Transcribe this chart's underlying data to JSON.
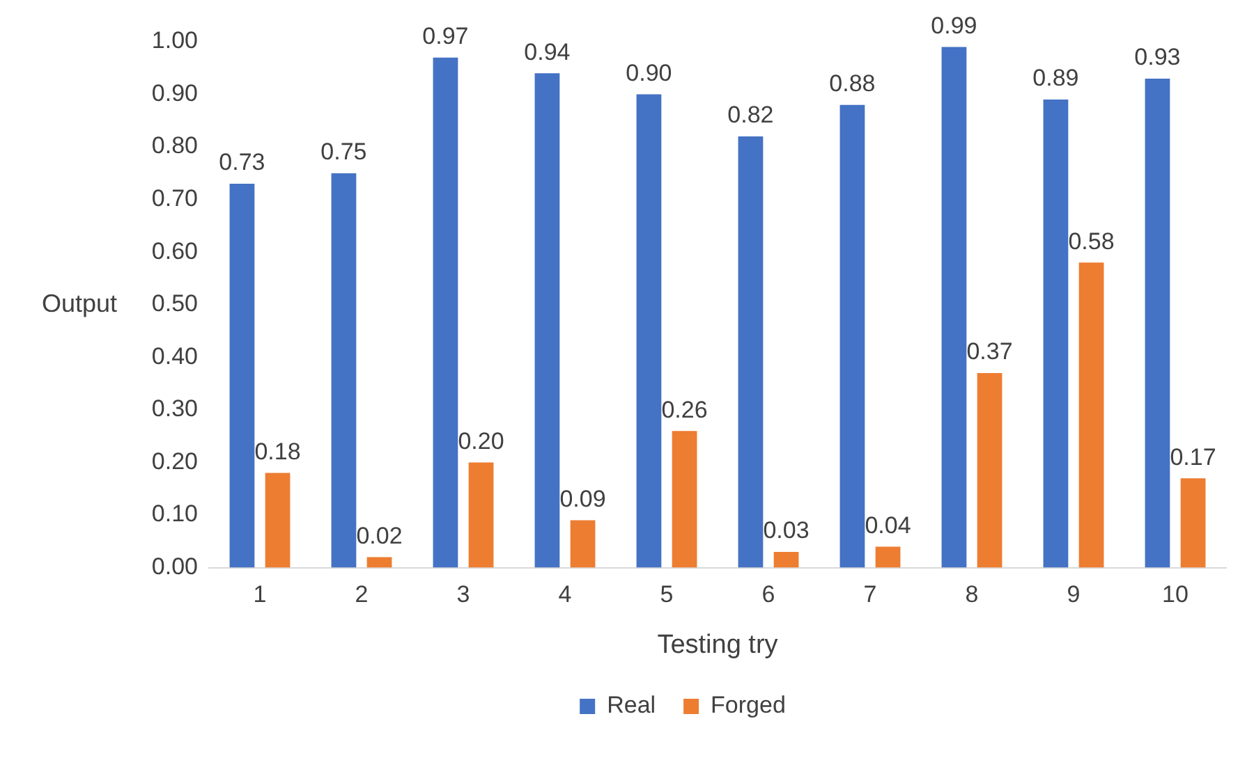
{
  "chart_data": {
    "type": "bar",
    "xlabel": "Testing try",
    "ylabel": "Output",
    "categories": [
      "1",
      "2",
      "3",
      "4",
      "5",
      "6",
      "7",
      "8",
      "9",
      "10"
    ],
    "series": [
      {
        "name": "Real",
        "color": "#4472c4",
        "values": [
          0.73,
          0.75,
          0.97,
          0.94,
          0.9,
          0.82,
          0.88,
          0.99,
          0.89,
          0.93
        ],
        "value_labels": [
          "0.73",
          "0.75",
          "0.97",
          "0.94",
          "0.90",
          "0.82",
          "0.88",
          "0.99",
          "0.89",
          "0.93"
        ]
      },
      {
        "name": "Forged",
        "color": "#ed7d31",
        "values": [
          0.18,
          0.02,
          0.2,
          0.09,
          0.26,
          0.03,
          0.04,
          0.37,
          0.58,
          0.17
        ],
        "value_labels": [
          "0.18",
          "0.02",
          "0.20",
          "0.09",
          "0.26",
          "0.03",
          "0.04",
          "0.37",
          "0.58",
          "0.17"
        ]
      }
    ],
    "ylim": [
      0,
      1
    ],
    "yticks": [
      {
        "value": 0,
        "label": "0.00"
      },
      {
        "value": 0.1,
        "label": "0.10"
      },
      {
        "value": 0.2,
        "label": "0.20"
      },
      {
        "value": 0.3,
        "label": "0.30"
      },
      {
        "value": 0.4,
        "label": "0.40"
      },
      {
        "value": 0.5,
        "label": "0.50"
      },
      {
        "value": 0.6,
        "label": "0.60"
      },
      {
        "value": 0.7,
        "label": "0.70"
      },
      {
        "value": 0.8,
        "label": "0.80"
      },
      {
        "value": 0.9,
        "label": "0.90"
      },
      {
        "value": 1,
        "label": "1.00"
      }
    ],
    "grid": false,
    "legend": "bottom"
  }
}
